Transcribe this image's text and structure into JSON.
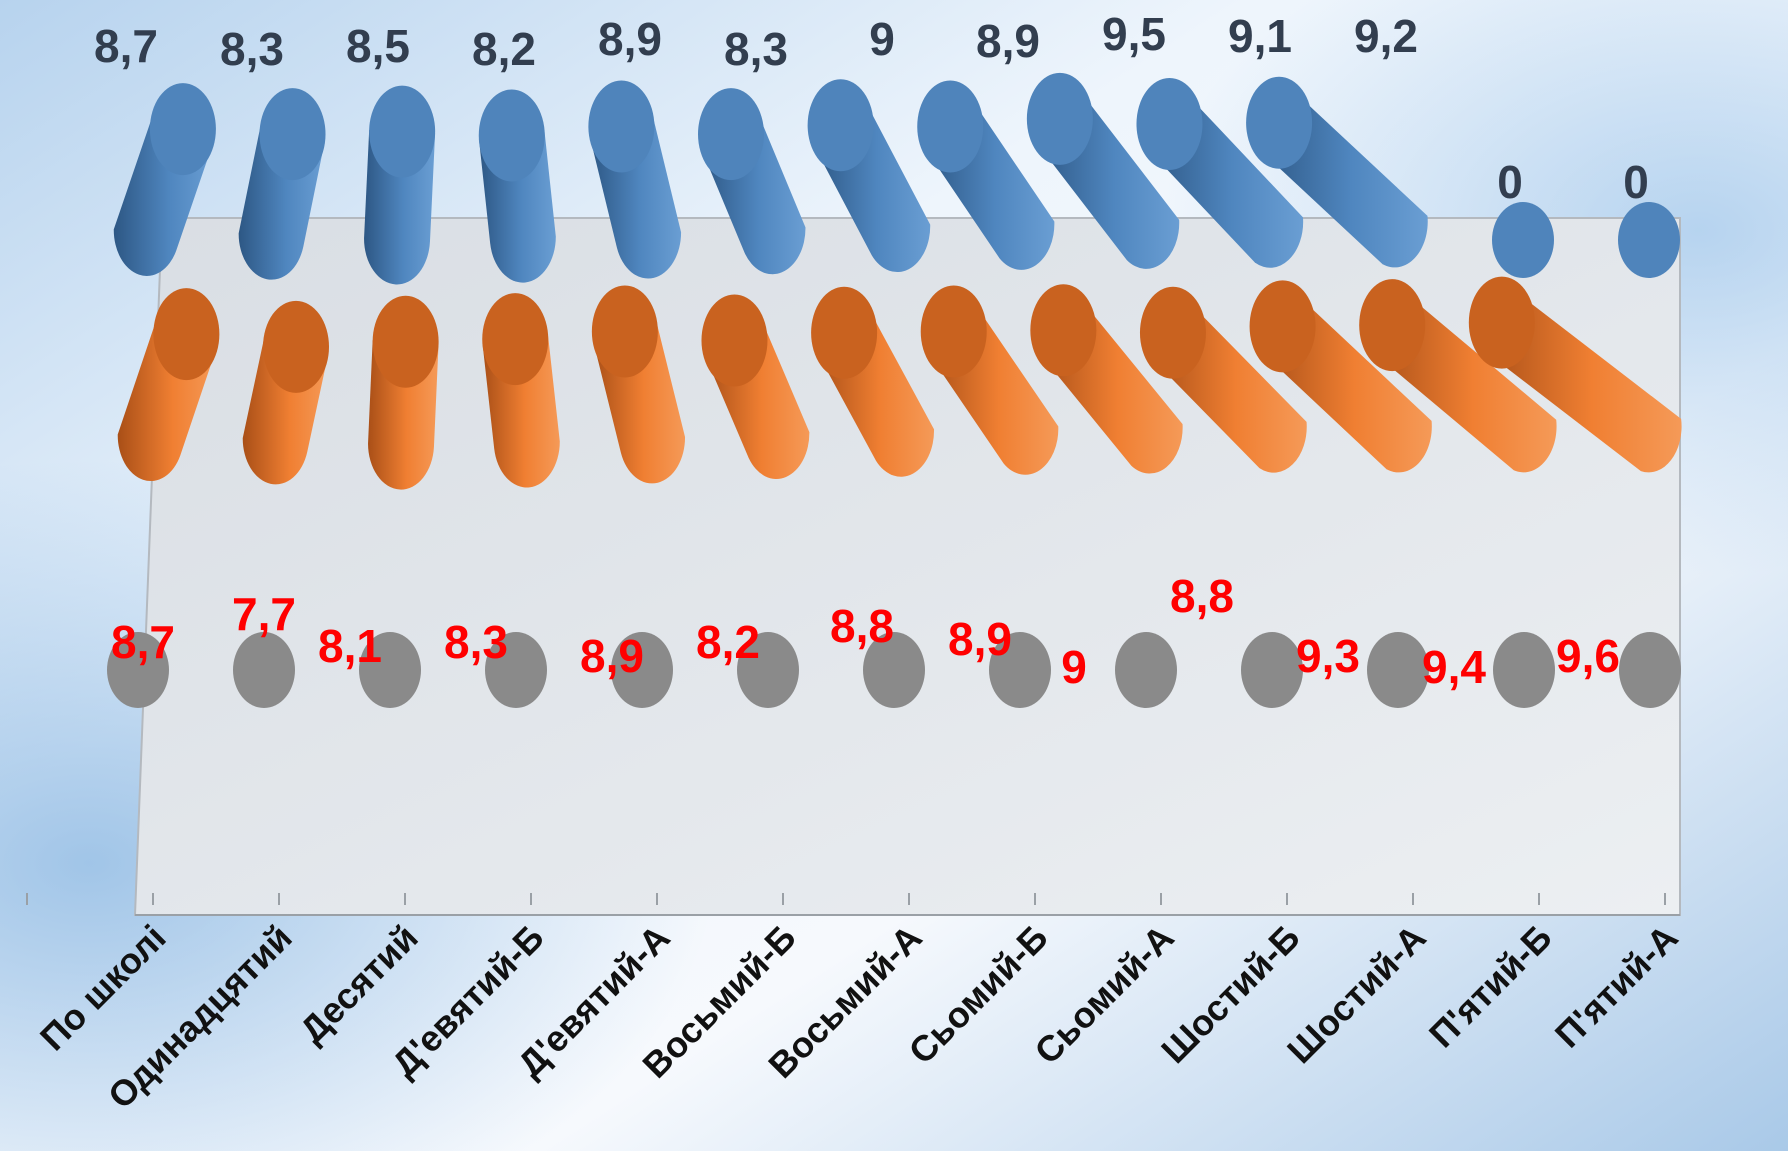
{
  "chart_data": {
    "type": "bar",
    "title": "",
    "xlabel": "",
    "ylabel": "",
    "legend": "none",
    "grid": false,
    "categories": [
      "По школі",
      "Одинадцятий",
      "Десятий",
      "Д'евятий-Б",
      "Д'евятий-А",
      "Восьмий-Б",
      "Восьмий-А",
      "Сьомий-Б",
      "Сьомий-А",
      "Шостий-Б",
      "Шостий-А",
      "П'ятий-Б",
      "П'ятий-А"
    ],
    "series": [
      {
        "values": [
          8.7,
          8.3,
          8.5,
          8.2,
          8.9,
          8.3,
          9,
          8.9,
          9.5,
          9.1,
          9.2,
          0,
          0
        ],
        "labels": [
          "8,7",
          "8,3",
          "8,5",
          "8,2",
          "8,9",
          "8,3",
          "9",
          "8,9",
          "9,5",
          "9,1",
          "9,2",
          "0",
          "0"
        ],
        "color": "#4a7fb5",
        "label_color": "#323e4f"
      },
      {
        "values": [
          8.7,
          7.7,
          8.1,
          8.3,
          8.9,
          8.2,
          8.8,
          8.9,
          9,
          8.8,
          9.3,
          9.4,
          9.6
        ],
        "labels": [
          "8,7",
          "7,7",
          "8,1",
          "8,3",
          "8,9",
          "8,2",
          "8,8",
          "8,9",
          "9",
          "8,8",
          "9,3",
          "9,4",
          "9,6"
        ],
        "color": "#ed7d31",
        "label_color": "#ff0000"
      },
      {
        "values": [
          null,
          null,
          null,
          null,
          null,
          null,
          null,
          null,
          null,
          null,
          null,
          null,
          null
        ],
        "labels": [],
        "color": "#8c8c8c",
        "label_color": "#323e4f"
      }
    ]
  }
}
